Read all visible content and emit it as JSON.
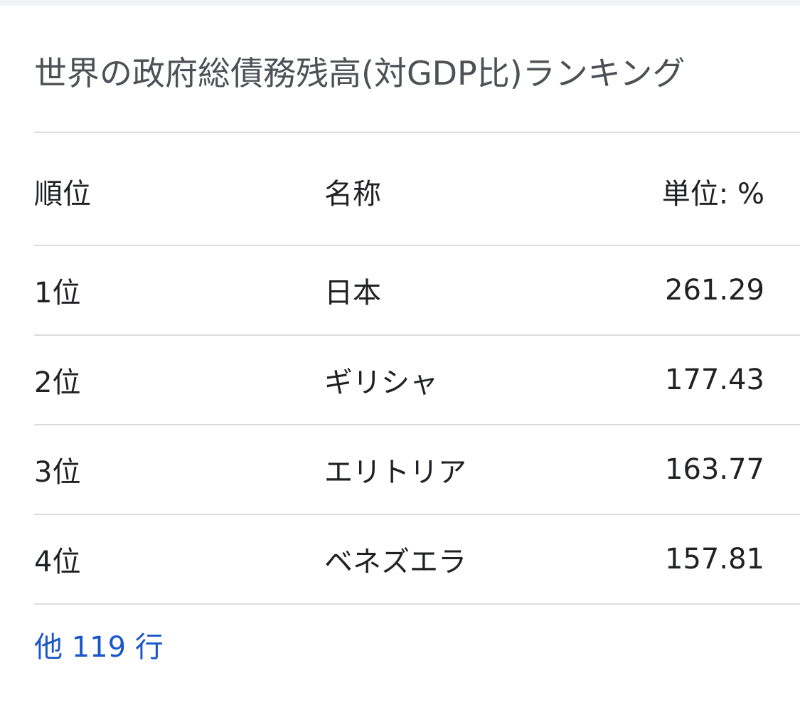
{
  "title": "世界の政府総債務残高(対GDP比)ランキング",
  "table": {
    "headers": {
      "rank": "順位",
      "name": "名称",
      "value": "単位: %"
    },
    "rows": [
      {
        "rank": "1位",
        "name": "日本",
        "value": "261.29"
      },
      {
        "rank": "2位",
        "name": "ギリシャ",
        "value": "177.43"
      },
      {
        "rank": "3位",
        "name": "エリトリア",
        "value": "163.77"
      },
      {
        "rank": "4位",
        "name": "ベネズエラ",
        "value": "157.81"
      }
    ]
  },
  "more_link": "他 119 行",
  "colors": {
    "title": "#4d5156",
    "text": "#202124",
    "link": "#1a57c8",
    "divider": "#dadce0"
  }
}
